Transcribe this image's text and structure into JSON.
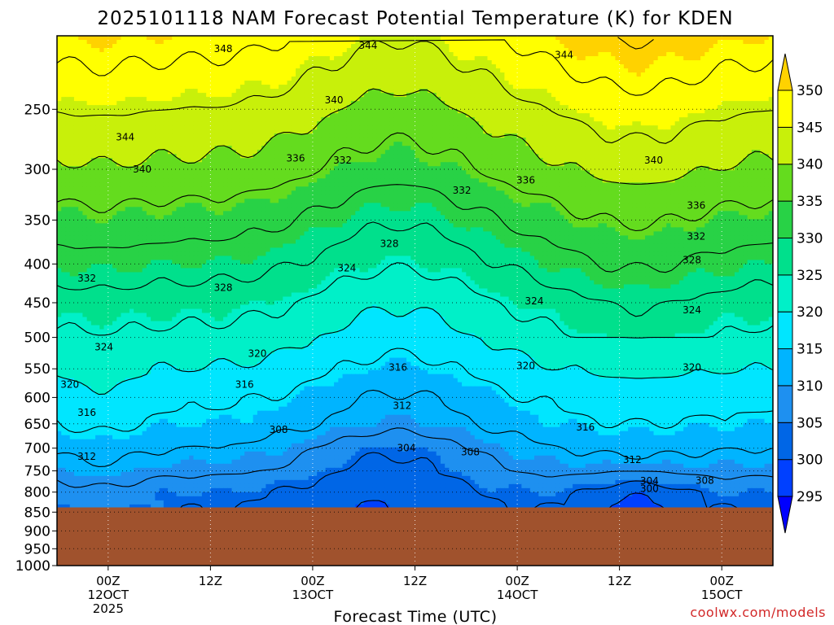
{
  "chart_data": {
    "type": "heatmap",
    "title": "2025101118 NAM Forecast Potential Temperature (K) for KDEN",
    "xlabel": "Forecast Time (UTC)",
    "ylabel": "",
    "credit": "coolwx.com/models",
    "y_scale": "log (pressure, hPa)",
    "ylim": [
      1000,
      200
    ],
    "y_ticks": [
      250,
      300,
      350,
      400,
      450,
      500,
      550,
      600,
      650,
      700,
      750,
      800,
      850,
      900,
      950,
      1000
    ],
    "x_ticks": [
      {
        "hour": 6,
        "label": "00Z",
        "date": "12OCT",
        "year": "2025"
      },
      {
        "hour": 18,
        "label": "12Z",
        "date": "",
        "year": ""
      },
      {
        "hour": 30,
        "label": "00Z",
        "date": "13OCT",
        "year": ""
      },
      {
        "hour": 42,
        "label": "12Z",
        "date": "",
        "year": ""
      },
      {
        "hour": 54,
        "label": "00Z",
        "date": "14OCT",
        "year": ""
      },
      {
        "hour": 66,
        "label": "12Z",
        "date": "",
        "year": ""
      },
      {
        "hour": 78,
        "label": "00Z",
        "date": "15OCT",
        "year": ""
      }
    ],
    "xlim": [
      0,
      84
    ],
    "colorbar": {
      "levels": [
        295,
        300,
        305,
        310,
        315,
        320,
        325,
        330,
        335,
        340,
        345,
        350
      ],
      "colors": [
        "#0000ff",
        "#0040ff",
        "#0066e6",
        "#1e90f0",
        "#00b4ff",
        "#00e6ff",
        "#00f0c8",
        "#00e08c",
        "#28d246",
        "#64dc1e",
        "#c8f00a",
        "#ffff00",
        "#ffd200"
      ]
    },
    "ground": {
      "surface_pressure": 838,
      "color": "#a0522d"
    },
    "contour_interval": 4,
    "contour_labels": [
      {
        "text": "348",
        "h": 19.5,
        "p": 208
      },
      {
        "text": "344",
        "h": 36.5,
        "p": 206
      },
      {
        "text": "344",
        "h": 59.5,
        "p": 212
      },
      {
        "text": "340",
        "h": 32.5,
        "p": 243
      },
      {
        "text": "344",
        "h": 8.0,
        "p": 272
      },
      {
        "text": "336",
        "h": 28.0,
        "p": 290
      },
      {
        "text": "332",
        "h": 33.5,
        "p": 292
      },
      {
        "text": "340",
        "h": 10.0,
        "p": 300
      },
      {
        "text": "340",
        "h": 70.0,
        "p": 292
      },
      {
        "text": "336",
        "h": 55.0,
        "p": 310
      },
      {
        "text": "332",
        "h": 47.5,
        "p": 320
      },
      {
        "text": "336",
        "h": 75.0,
        "p": 335
      },
      {
        "text": "332",
        "h": 75.0,
        "p": 368
      },
      {
        "text": "328",
        "h": 39.0,
        "p": 376
      },
      {
        "text": "328",
        "h": 74.5,
        "p": 395
      },
      {
        "text": "324",
        "h": 34.0,
        "p": 405
      },
      {
        "text": "332",
        "h": 3.5,
        "p": 418
      },
      {
        "text": "328",
        "h": 19.5,
        "p": 430
      },
      {
        "text": "324",
        "h": 56.0,
        "p": 448
      },
      {
        "text": "324",
        "h": 74.5,
        "p": 460
      },
      {
        "text": "324",
        "h": 5.5,
        "p": 515
      },
      {
        "text": "320",
        "h": 23.5,
        "p": 525
      },
      {
        "text": "316",
        "h": 40.0,
        "p": 548
      },
      {
        "text": "320",
        "h": 55.0,
        "p": 545
      },
      {
        "text": "320",
        "h": 74.5,
        "p": 548
      },
      {
        "text": "320",
        "h": 1.5,
        "p": 577
      },
      {
        "text": "316",
        "h": 22.0,
        "p": 577
      },
      {
        "text": "312",
        "h": 40.5,
        "p": 615
      },
      {
        "text": "316",
        "h": 3.5,
        "p": 628
      },
      {
        "text": "308",
        "h": 26.0,
        "p": 662
      },
      {
        "text": "316",
        "h": 62.0,
        "p": 657
      },
      {
        "text": "304",
        "h": 41.0,
        "p": 700
      },
      {
        "text": "308",
        "h": 48.5,
        "p": 708
      },
      {
        "text": "312",
        "h": 3.5,
        "p": 718
      },
      {
        "text": "312",
        "h": 67.5,
        "p": 725
      },
      {
        "text": "304",
        "h": 69.5,
        "p": 773
      },
      {
        "text": "308",
        "h": 76.0,
        "p": 772
      },
      {
        "text": "300",
        "h": 69.5,
        "p": 792
      }
    ]
  }
}
